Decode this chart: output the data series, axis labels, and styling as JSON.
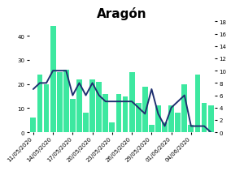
{
  "title": "Aragón",
  "xtick_labels": [
    "11/05/2020",
    "14/05/2020",
    "17/05/2020",
    "20/05/2020",
    "23/05/2020",
    "26/05/2020",
    "29/05/2020",
    "01/06/2020",
    "04/06/2020"
  ],
  "xtick_positions": [
    0,
    3,
    6,
    9,
    12,
    15,
    18,
    21,
    24
  ],
  "bar_values": [
    6,
    24,
    20,
    44,
    25,
    26,
    14,
    22,
    8,
    22,
    21,
    16,
    4,
    16,
    15,
    25,
    12,
    19,
    3,
    11,
    4,
    11,
    8,
    20,
    3,
    24,
    12,
    11
  ],
  "line_values": [
    7,
    8,
    8,
    10,
    10,
    10,
    6,
    8,
    6,
    8,
    6,
    5,
    5,
    5,
    5,
    5,
    4,
    3,
    7,
    3,
    1,
    4,
    5,
    6,
    1,
    1,
    1,
    0
  ],
  "bar_color": "#3de8a0",
  "line_color": "#1f3070",
  "background_color": "#ffffff",
  "left_ylim": [
    0,
    46
  ],
  "right_ylim": [
    0,
    18
  ],
  "left_yticks": [
    0,
    10,
    20,
    30,
    40
  ],
  "right_yticks": [
    0,
    2,
    4,
    6,
    8,
    10,
    12,
    14,
    16,
    18
  ],
  "title_fontsize": 11,
  "tick_fontsize": 5
}
